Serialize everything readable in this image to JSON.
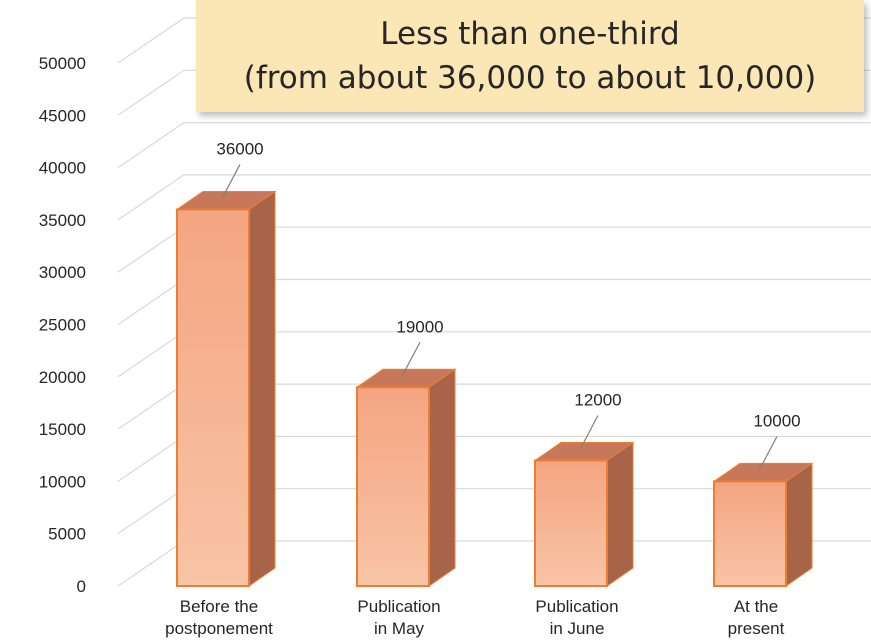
{
  "annotation": {
    "line1": "Less than one-third",
    "line2": "(from about 36,000 to about 10,000)"
  },
  "chart_data": {
    "type": "bar",
    "categories": [
      [
        "Before the",
        "postponement"
      ],
      [
        "Publication",
        "in May"
      ],
      [
        "Publication",
        "in June"
      ],
      [
        "At the",
        "present"
      ]
    ],
    "values": [
      36000,
      19000,
      12000,
      10000
    ],
    "data_labels": [
      "36000",
      "19000",
      "12000",
      "10000"
    ],
    "y_ticks": [
      0,
      5000,
      10000,
      15000,
      20000,
      25000,
      30000,
      35000,
      40000,
      45000,
      50000
    ],
    "ylim": [
      0,
      50000
    ],
    "grid": true,
    "legend": "none",
    "style": "3d-column",
    "colors": {
      "bar_front": "#f4a582",
      "bar_front_light": "#f8c0a0",
      "bar_top": "#c8785a",
      "bar_side": "#a86448",
      "bar_outline": "#ed7d31",
      "annotation_fill": "#fbe6b6"
    }
  }
}
